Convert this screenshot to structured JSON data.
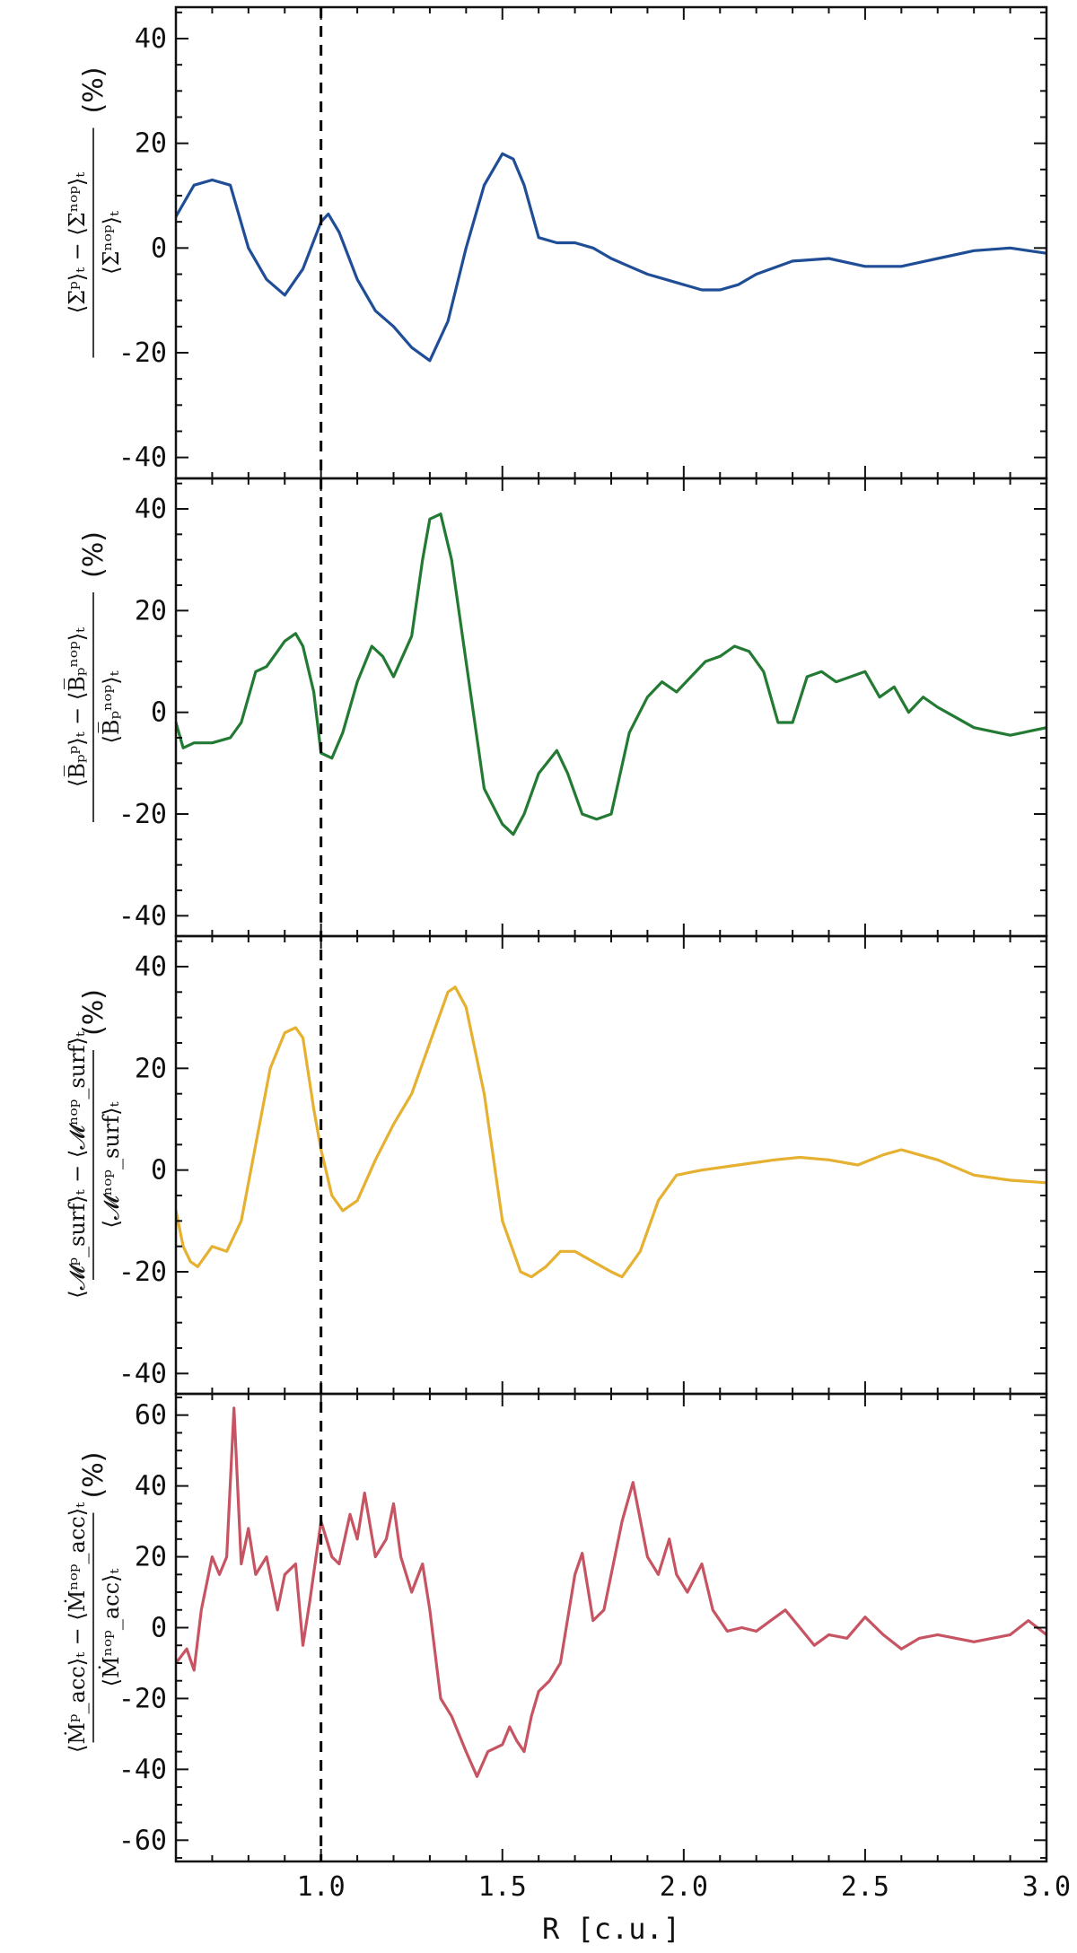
{
  "chart_data": [
    {
      "type": "line",
      "color": "#1f4e96",
      "ylabel": {
        "numerator": "⟨Σᵖ⟩ₜ − ⟨Σⁿᵒᵖ⟩ₜ",
        "denominator": "⟨Σⁿᵒᵖ⟩ₜ",
        "unit": "(%)"
      },
      "ylim": [
        -44,
        46
      ],
      "yticks": [
        -40,
        -20,
        0,
        20,
        40
      ],
      "x": [
        0.6,
        0.65,
        0.7,
        0.75,
        0.8,
        0.85,
        0.9,
        0.95,
        1.0,
        1.02,
        1.05,
        1.1,
        1.15,
        1.2,
        1.25,
        1.3,
        1.35,
        1.4,
        1.45,
        1.5,
        1.53,
        1.56,
        1.6,
        1.65,
        1.7,
        1.75,
        1.8,
        1.85,
        1.9,
        1.95,
        2.0,
        2.05,
        2.1,
        2.15,
        2.2,
        2.3,
        2.4,
        2.5,
        2.6,
        2.7,
        2.8,
        2.9,
        3.0
      ],
      "y": [
        6,
        12,
        13,
        12,
        0,
        -6,
        -9,
        -4,
        5,
        6.5,
        3,
        -6,
        -12,
        -15,
        -19,
        -21.5,
        -14,
        0,
        12,
        18,
        17,
        12,
        2,
        1,
        1,
        0,
        -2,
        -3.5,
        -5,
        -6,
        -7,
        -8,
        -8,
        -7,
        -5,
        -2.5,
        -2,
        -3.5,
        -3.5,
        -2,
        -0.5,
        0,
        -1
      ]
    },
    {
      "type": "line",
      "color": "#237a33",
      "ylabel": {
        "numerator": "⟨B̅ₚᵖ⟩ₜ − ⟨B̅ₚⁿᵒᵖ⟩ₜ",
        "denominator": "⟨B̅ₚⁿᵒᵖ⟩ₜ",
        "unit": "(%)"
      },
      "ylim": [
        -44,
        46
      ],
      "yticks": [
        -40,
        -20,
        0,
        20,
        40
      ],
      "x": [
        0.6,
        0.62,
        0.65,
        0.7,
        0.75,
        0.78,
        0.82,
        0.85,
        0.88,
        0.9,
        0.93,
        0.95,
        0.98,
        1.0,
        1.03,
        1.06,
        1.1,
        1.14,
        1.17,
        1.2,
        1.25,
        1.28,
        1.3,
        1.33,
        1.36,
        1.4,
        1.45,
        1.5,
        1.53,
        1.56,
        1.6,
        1.65,
        1.68,
        1.72,
        1.76,
        1.8,
        1.85,
        1.9,
        1.94,
        1.98,
        2.02,
        2.06,
        2.1,
        2.14,
        2.18,
        2.22,
        2.26,
        2.3,
        2.34,
        2.38,
        2.42,
        2.46,
        2.5,
        2.54,
        2.58,
        2.62,
        2.66,
        2.7,
        2.75,
        2.8,
        2.9,
        3.0
      ],
      "y": [
        -2,
        -7,
        -6,
        -6,
        -5,
        -2,
        8,
        9,
        12,
        14,
        15.5,
        13,
        4,
        -8,
        -9,
        -4,
        6,
        13,
        11,
        7,
        15,
        30,
        38,
        39,
        30,
        10,
        -15,
        -22,
        -24,
        -20,
        -12,
        -7.5,
        -12,
        -20,
        -21,
        -20,
        -4,
        3,
        6,
        4,
        7,
        10,
        11,
        13,
        12,
        8,
        -2,
        -2,
        7,
        8,
        6,
        7,
        8,
        3,
        5,
        0,
        3,
        1,
        -1,
        -3,
        -4.5,
        -3
      ]
    },
    {
      "type": "line",
      "color": "#e6b030",
      "ylabel": {
        "numerator": "⟨𝓜ᵖ_surf⟩ₜ − ⟨𝓜ⁿᵒᵖ_surf⟩ₜ",
        "denominator": "⟨𝓜ⁿᵒᵖ_surf⟩ₜ",
        "unit": "(%)"
      },
      "ylim": [
        -44,
        46
      ],
      "yticks": [
        -40,
        -20,
        0,
        20,
        40
      ],
      "x": [
        0.6,
        0.62,
        0.64,
        0.66,
        0.7,
        0.74,
        0.78,
        0.82,
        0.86,
        0.9,
        0.93,
        0.95,
        0.98,
        1.0,
        1.03,
        1.06,
        1.1,
        1.15,
        1.2,
        1.25,
        1.3,
        1.35,
        1.37,
        1.4,
        1.45,
        1.5,
        1.55,
        1.58,
        1.62,
        1.66,
        1.7,
        1.75,
        1.8,
        1.83,
        1.88,
        1.93,
        1.98,
        2.05,
        2.15,
        2.25,
        2.32,
        2.4,
        2.48,
        2.55,
        2.6,
        2.65,
        2.7,
        2.8,
        2.9,
        3.0
      ],
      "y": [
        -8,
        -15,
        -18,
        -19,
        -15,
        -16,
        -10,
        5,
        20,
        27,
        28,
        26,
        12,
        4,
        -5,
        -8,
        -6,
        2,
        9,
        15,
        25,
        35,
        36,
        32,
        15,
        -10,
        -20,
        -21,
        -19,
        -16,
        -16,
        -18,
        -20,
        -21,
        -16,
        -6,
        -1,
        0,
        1,
        2,
        2.5,
        2,
        1,
        3,
        4,
        3,
        2,
        -1,
        -2,
        -2.5
      ]
    },
    {
      "type": "line",
      "color": "#c65462",
      "ylabel": {
        "numerator": "⟨Ṁᵖ_acc⟩ₜ − ⟨Ṁⁿᵒᵖ_acc⟩ₜ",
        "denominator": "⟨Ṁⁿᵒᵖ_acc⟩ₜ",
        "unit": "(%)"
      },
      "ylim": [
        -66,
        66
      ],
      "yticks": [
        -60,
        -40,
        -20,
        0,
        20,
        40,
        60
      ],
      "x": [
        0.6,
        0.63,
        0.65,
        0.67,
        0.7,
        0.72,
        0.74,
        0.76,
        0.78,
        0.8,
        0.82,
        0.85,
        0.88,
        0.9,
        0.93,
        0.95,
        0.97,
        1.0,
        1.03,
        1.05,
        1.08,
        1.1,
        1.12,
        1.15,
        1.18,
        1.2,
        1.22,
        1.25,
        1.28,
        1.3,
        1.33,
        1.36,
        1.4,
        1.43,
        1.46,
        1.5,
        1.52,
        1.54,
        1.56,
        1.58,
        1.6,
        1.63,
        1.66,
        1.7,
        1.72,
        1.75,
        1.78,
        1.8,
        1.83,
        1.86,
        1.9,
        1.93,
        1.96,
        1.98,
        2.01,
        2.05,
        2.08,
        2.12,
        2.16,
        2.2,
        2.24,
        2.28,
        2.32,
        2.36,
        2.4,
        2.45,
        2.5,
        2.55,
        2.6,
        2.65,
        2.7,
        2.8,
        2.9,
        2.95,
        3.0
      ],
      "y": [
        -10,
        -6,
        -12,
        5,
        20,
        15,
        20,
        62,
        18,
        28,
        15,
        20,
        5,
        15,
        18,
        -5,
        8,
        30,
        20,
        18,
        32,
        25,
        38,
        20,
        25,
        35,
        20,
        10,
        18,
        5,
        -20,
        -25,
        -35,
        -42,
        -35,
        -33,
        -28,
        -32,
        -35,
        -25,
        -18,
        -15,
        -10,
        15,
        21,
        2,
        5,
        15,
        30,
        41,
        20,
        15,
        25,
        15,
        10,
        18,
        5,
        -1,
        0,
        -1,
        2,
        5,
        0,
        -5,
        -2,
        -3,
        3,
        -2,
        -6,
        -3,
        -2,
        -4,
        -2,
        2,
        -2
      ]
    }
  ],
  "xaxis": {
    "label": "R [c.u.]",
    "xlim": [
      0.6,
      3.0
    ],
    "ticks": [
      1.0,
      1.5,
      2.0,
      2.5,
      3.0
    ],
    "tick_labels": [
      "1.0",
      "1.5",
      "2.0",
      "2.5",
      "3.0"
    ]
  },
  "reference_line": {
    "x": 1.0,
    "style": "dashed",
    "color": "#000000"
  }
}
